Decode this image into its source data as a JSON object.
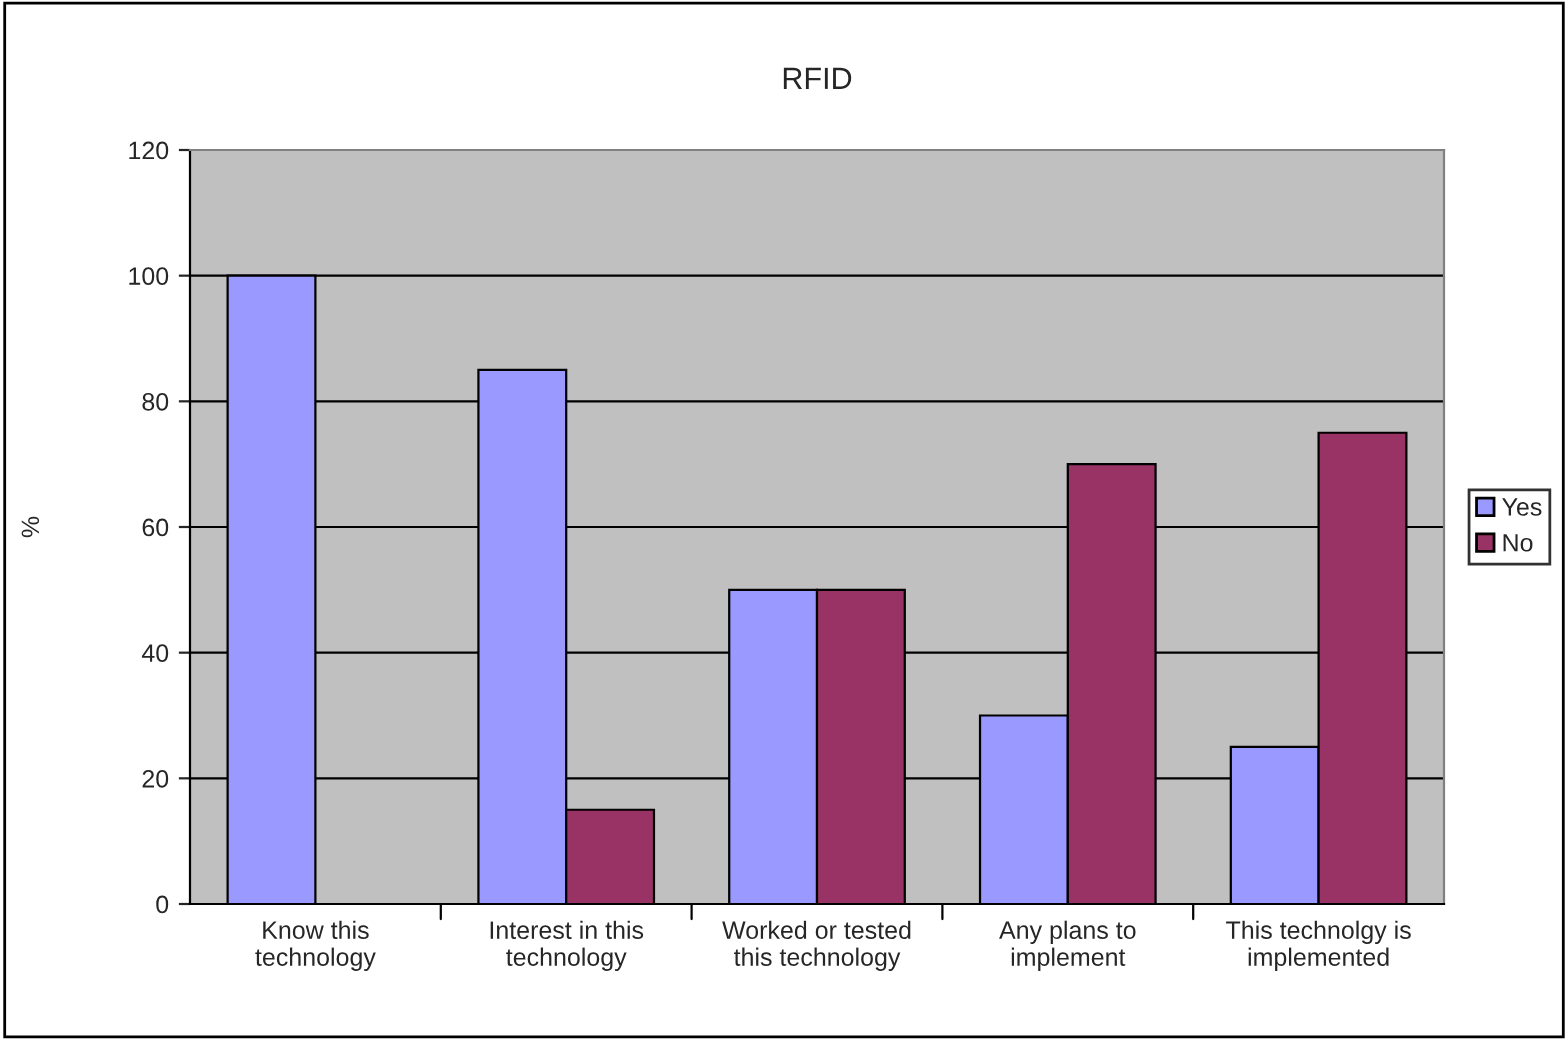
{
  "chart_data": {
    "type": "bar",
    "title": "RFID",
    "ylabel": "%",
    "categories": [
      "Know this\ntechnology",
      "Interest in this\ntechnology",
      "Worked or tested\nthis technology",
      "Any plans to\nimplement",
      "This technolgy is\nimplemented"
    ],
    "series": [
      {
        "name": "Yes",
        "color": "#9999ff",
        "values": [
          100,
          85,
          50,
          30,
          25
        ]
      },
      {
        "name": "No",
        "color": "#993366",
        "values": [
          null,
          15,
          50,
          70,
          75
        ]
      }
    ],
    "ylim": [
      0,
      120
    ],
    "yticks": [
      0,
      20,
      40,
      60,
      80,
      100,
      120
    ],
    "grid": "y",
    "legend": "right"
  }
}
